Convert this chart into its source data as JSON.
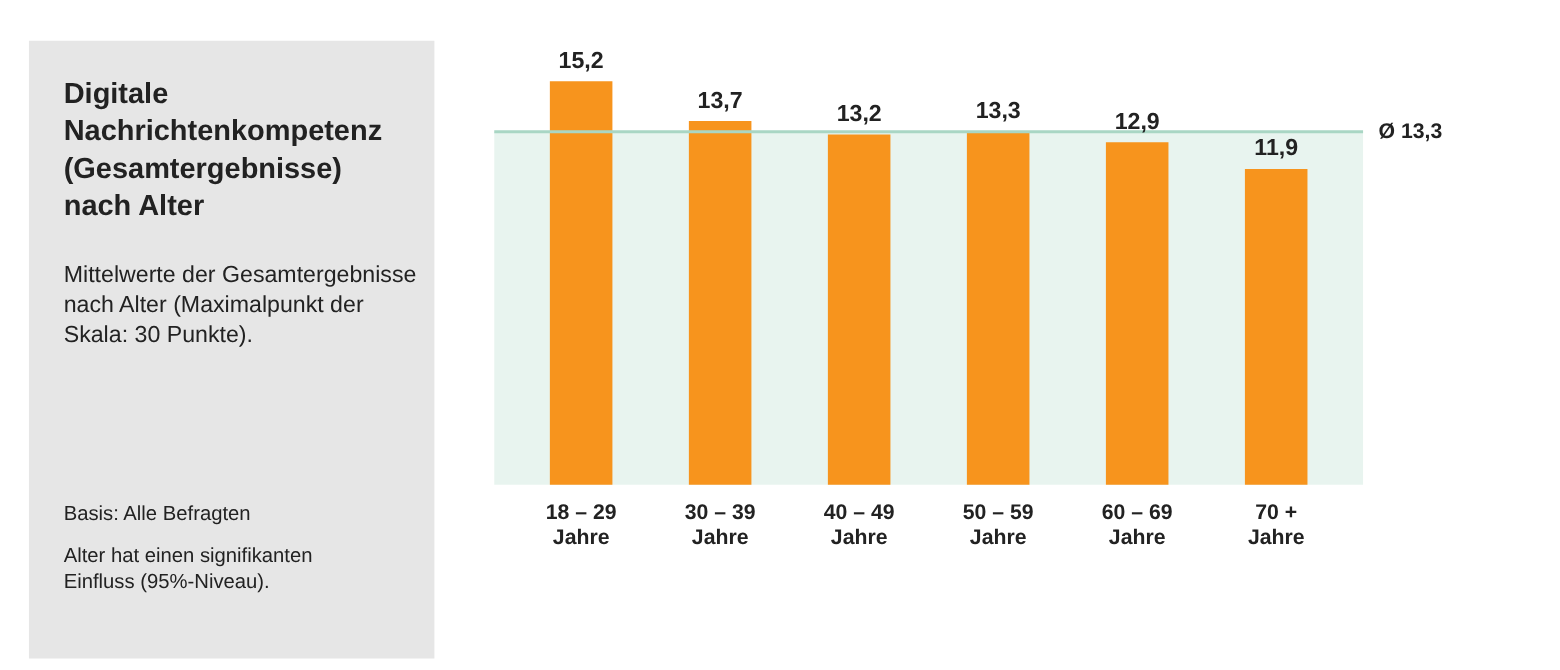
{
  "chart_data": {
    "type": "bar",
    "title": "Digitale Nachrichtenkompetenz (Gesamtergebnisse) nach Alter",
    "subtitle": "Mittelwerte der Gesamtergebnisse nach Alter (Maximalpunkt der Skala: 30 Punkte).",
    "annotations": [
      "Basis: Alle Befragten",
      "Alter hat einen signifikanten Einfluss (95%-Niveau)."
    ],
    "categories": [
      "18 – 29 Jahre",
      "30 – 39 Jahre",
      "40 – 49 Jahre",
      "50 – 59 Jahre",
      "60 – 69 Jahre",
      "70 + Jahre"
    ],
    "values": [
      15.2,
      13.7,
      13.2,
      13.3,
      12.9,
      11.9
    ],
    "value_labels": [
      "15,2",
      "13,7",
      "13,2",
      "13,3",
      "12,9",
      "11,9"
    ],
    "color": "#f7941d",
    "tick_labels": "x",
    "grid": false,
    "ref_lines": [
      {
        "axis": "y",
        "value": 13.3,
        "label": "Ø 13,3",
        "color": "#a9d6c4"
      }
    ],
    "bands": [
      {
        "axis": "y",
        "from": 0,
        "to": 13.3,
        "color": "#e8f4ef"
      }
    ]
  }
}
